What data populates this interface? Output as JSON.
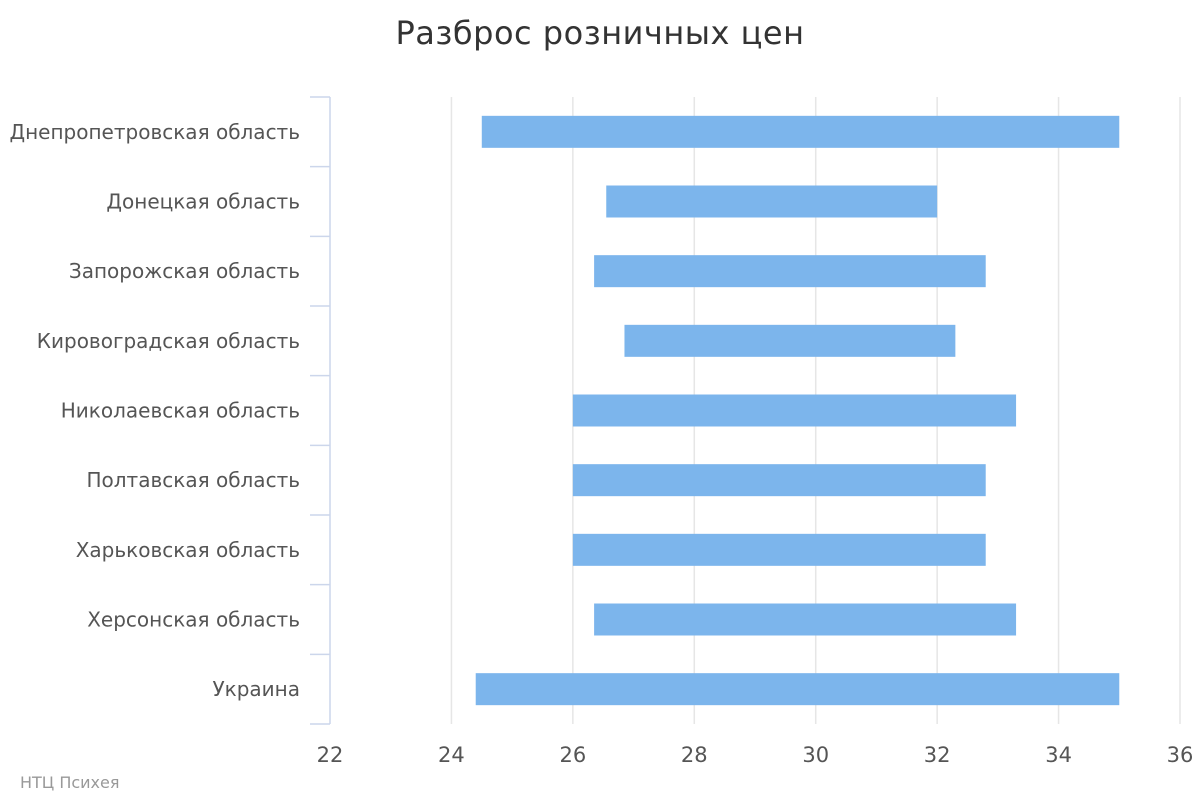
{
  "chart_data": {
    "type": "bar",
    "orientation": "horizontal",
    "range_bars": true,
    "title": "Разброс розничных цен",
    "xlabel": "",
    "ylabel": "",
    "xlim": [
      22,
      36
    ],
    "ticks": [
      22,
      24,
      26,
      28,
      30,
      32,
      34,
      36
    ],
    "grid": true,
    "categories": [
      "Днепропетровская область",
      "Донецкая область",
      "Запорожская область",
      "Кировоградская область",
      "Николаевская область",
      "Полтавская область",
      "Харьковская область",
      "Херсонская область",
      "Украина"
    ],
    "series": [
      {
        "low": [
          24.5,
          26.55,
          26.35,
          26.85,
          26.0,
          26.0,
          26.0,
          26.35,
          24.4
        ],
        "high": [
          35.0,
          32.0,
          32.8,
          32.3,
          33.3,
          32.8,
          32.8,
          33.3,
          35.0
        ]
      }
    ],
    "colors": {
      "bar": "#7cb5ec",
      "grid": "#e6e6e6",
      "axis": "#ccd6eb"
    }
  },
  "credits": "НТЦ Психея"
}
